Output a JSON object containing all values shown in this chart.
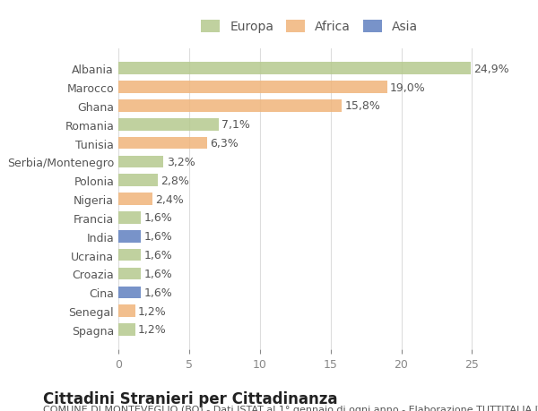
{
  "countries": [
    "Albania",
    "Marocco",
    "Ghana",
    "Romania",
    "Tunisia",
    "Serbia/Montenegro",
    "Polonia",
    "Nigeria",
    "Francia",
    "India",
    "Ucraina",
    "Croazia",
    "Cina",
    "Senegal",
    "Spagna"
  ],
  "values": [
    24.9,
    19.0,
    15.8,
    7.1,
    6.3,
    3.2,
    2.8,
    2.4,
    1.6,
    1.6,
    1.6,
    1.6,
    1.6,
    1.2,
    1.2
  ],
  "labels": [
    "24,9%",
    "19,0%",
    "15,8%",
    "7,1%",
    "6,3%",
    "3,2%",
    "2,8%",
    "2,4%",
    "1,6%",
    "1,6%",
    "1,6%",
    "1,6%",
    "1,6%",
    "1,2%",
    "1,2%"
  ],
  "continents": [
    "Europa",
    "Africa",
    "Africa",
    "Europa",
    "Africa",
    "Europa",
    "Europa",
    "Africa",
    "Europa",
    "Asia",
    "Europa",
    "Europa",
    "Asia",
    "Africa",
    "Europa"
  ],
  "colors": {
    "Europa": "#b5c98e",
    "Africa": "#f0b47a",
    "Asia": "#6080c0"
  },
  "legend_colors": {
    "Europa": "#b5c98e",
    "Africa": "#f0b47a",
    "Asia": "#6080c0"
  },
  "xlim": [
    0,
    27
  ],
  "xticks": [
    0,
    5,
    10,
    15,
    20,
    25
  ],
  "title": "Cittadini Stranieri per Cittadinanza",
  "subtitle": "COMUNE DI MONTEVEGLIO (BO) - Dati ISTAT al 1° gennaio di ogni anno - Elaborazione TUTTITALIA.IT",
  "background_color": "#ffffff",
  "plot_bg_color": "#ffffff",
  "grid_color": "#dddddd",
  "bar_height": 0.65,
  "label_fontsize": 9,
  "tick_fontsize": 9,
  "title_fontsize": 12,
  "subtitle_fontsize": 8
}
